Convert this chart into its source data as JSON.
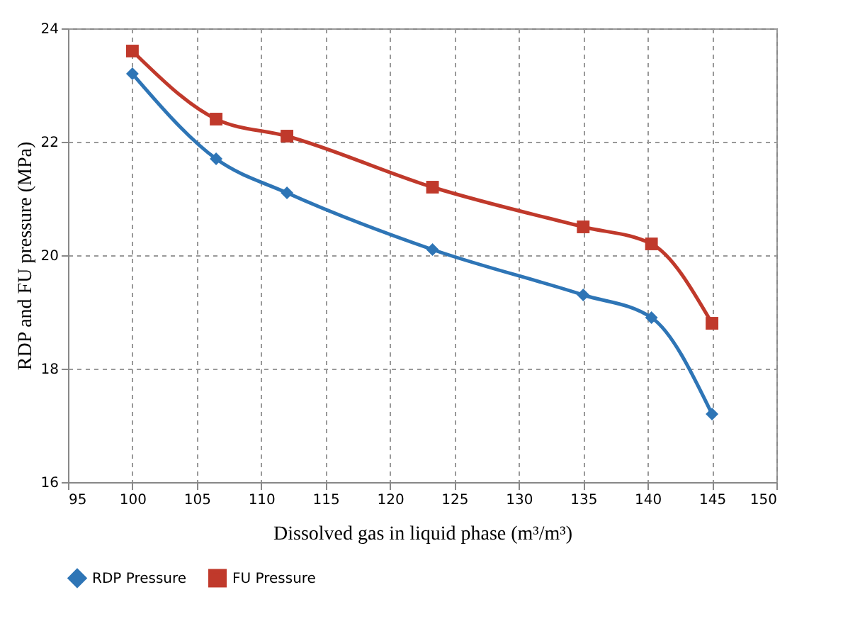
{
  "chart_data": {
    "type": "line",
    "xlabel": "Dissolved gas in liquid phase (m³/m³)",
    "ylabel": "RDP and FU pressure (MPa)",
    "x": [
      100,
      106.5,
      112,
      123.3,
      135,
      140.3,
      145
    ],
    "series": [
      {
        "name": "RDP Pressure",
        "color": "#2e75b6",
        "marker": "diamond",
        "values": [
          23.2,
          21.7,
          21.1,
          20.1,
          19.3,
          18.9,
          17.2
        ]
      },
      {
        "name": "FU Pressure",
        "color": "#c0392b",
        "marker": "square",
        "values": [
          23.6,
          22.4,
          22.1,
          21.2,
          20.5,
          20.2,
          18.8
        ]
      }
    ],
    "xlim": [
      95,
      150
    ],
    "xticks": [
      95,
      100,
      105,
      110,
      115,
      120,
      125,
      130,
      135,
      140,
      145,
      150
    ],
    "ylim": [
      16,
      24
    ],
    "yticks": [
      16,
      18,
      20,
      22,
      24
    ],
    "grid": true,
    "legend": "bottom",
    "line_style": "solid"
  }
}
